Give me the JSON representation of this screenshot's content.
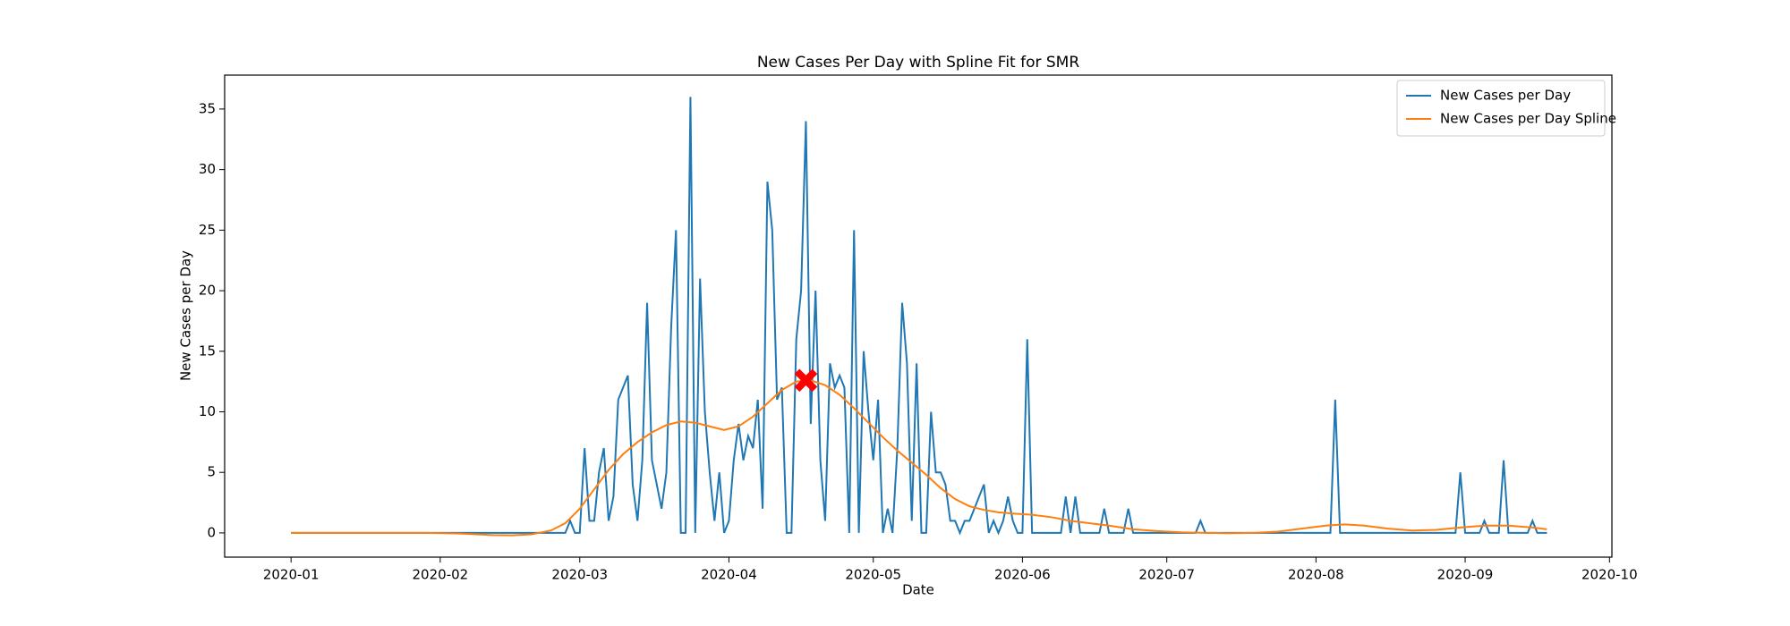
{
  "chart_data": {
    "type": "line",
    "title": "New Cases Per Day with Spline Fit for SMR",
    "x_label": "Date",
    "y_label": "New Cases per Day",
    "xlim": [
      -13.8,
      274.5
    ],
    "ylim": [
      -2,
      37.8
    ],
    "xticks": [
      {
        "value": 0,
        "label": "2020-01"
      },
      {
        "value": 31,
        "label": "2020-02"
      },
      {
        "value": 60,
        "label": "2020-03"
      },
      {
        "value": 91,
        "label": "2020-04"
      },
      {
        "value": 121,
        "label": "2020-05"
      },
      {
        "value": 152,
        "label": "2020-06"
      },
      {
        "value": 182,
        "label": "2020-07"
      },
      {
        "value": 213,
        "label": "2020-08"
      },
      {
        "value": 244,
        "label": "2020-09"
      },
      {
        "value": 274,
        "label": "2020-10"
      }
    ],
    "yticks": [
      0,
      5,
      10,
      15,
      20,
      25,
      30,
      35
    ],
    "legend": "upper right",
    "series": [
      {
        "name": "New Cases per Day",
        "color": "#1f77b4",
        "x": [
          0,
          1,
          2,
          3,
          4,
          5,
          6,
          7,
          8,
          9,
          10,
          11,
          12,
          13,
          14,
          15,
          16,
          17,
          18,
          19,
          20,
          21,
          22,
          23,
          24,
          25,
          26,
          27,
          28,
          29,
          30,
          31,
          32,
          33,
          34,
          35,
          36,
          37,
          38,
          39,
          40,
          41,
          42,
          43,
          44,
          45,
          46,
          47,
          48,
          49,
          50,
          51,
          52,
          53,
          54,
          55,
          56,
          57,
          58,
          59,
          60,
          61,
          62,
          63,
          64,
          65,
          66,
          67,
          68,
          69,
          70,
          71,
          72,
          73,
          74,
          75,
          76,
          77,
          78,
          79,
          80,
          81,
          82,
          83,
          84,
          85,
          86,
          87,
          88,
          89,
          90,
          91,
          92,
          93,
          94,
          95,
          96,
          97,
          98,
          99,
          100,
          101,
          102,
          103,
          104,
          105,
          106,
          107,
          108,
          109,
          110,
          111,
          112,
          113,
          114,
          115,
          116,
          117,
          118,
          119,
          120,
          121,
          122,
          123,
          124,
          125,
          126,
          127,
          128,
          129,
          130,
          131,
          132,
          133,
          134,
          135,
          136,
          137,
          138,
          139,
          140,
          141,
          142,
          143,
          144,
          145,
          146,
          147,
          148,
          149,
          150,
          151,
          152,
          153,
          154,
          155,
          156,
          157,
          158,
          159,
          160,
          161,
          162,
          163,
          164,
          165,
          166,
          167,
          168,
          169,
          170,
          171,
          172,
          173,
          174,
          175,
          176,
          177,
          178,
          179,
          180,
          181,
          182,
          183,
          184,
          185,
          186,
          187,
          188,
          189,
          190,
          191,
          192,
          193,
          194,
          195,
          196,
          197,
          198,
          199,
          200,
          201,
          202,
          203,
          204,
          205,
          206,
          207,
          208,
          209,
          210,
          211,
          212,
          213,
          214,
          215,
          216,
          217,
          218,
          219,
          220,
          221,
          222,
          223,
          224,
          225,
          226,
          227,
          228,
          229,
          230,
          231,
          232,
          233,
          234,
          235,
          236,
          237,
          238,
          239,
          240,
          241,
          242,
          243,
          244,
          245,
          246,
          247,
          248,
          249,
          250,
          251,
          252,
          253,
          254,
          255,
          256,
          257,
          258,
          259,
          260,
          261
        ],
        "values": [
          0,
          0,
          0,
          0,
          0,
          0,
          0,
          0,
          0,
          0,
          0,
          0,
          0,
          0,
          0,
          0,
          0,
          0,
          0,
          0,
          0,
          0,
          0,
          0,
          0,
          0,
          0,
          0,
          0,
          0,
          0,
          0,
          0,
          0,
          0,
          0,
          0,
          0,
          0,
          0,
          0,
          0,
          0,
          0,
          0,
          0,
          0,
          0,
          0,
          0,
          0,
          0,
          0,
          0,
          0,
          0,
          0,
          0,
          1,
          0,
          0,
          7,
          1,
          1,
          5,
          7,
          1,
          3,
          11,
          12,
          13,
          4,
          1,
          6,
          19,
          6,
          4,
          2,
          5,
          17,
          25,
          0,
          0,
          36,
          0,
          21,
          10,
          5,
          1,
          5,
          0,
          1,
          6,
          9,
          6,
          8,
          7,
          11,
          2,
          29,
          25,
          11,
          12,
          0,
          0,
          16,
          20,
          34,
          9,
          20,
          6,
          1,
          14,
          12,
          13,
          12,
          0,
          25,
          0,
          15,
          10,
          6,
          11,
          0,
          2,
          0,
          7,
          19,
          14,
          1,
          14,
          0,
          0,
          10,
          5,
          5,
          4,
          1,
          1,
          0,
          1,
          1,
          2,
          3,
          4,
          0,
          1,
          0,
          1,
          3,
          1,
          0,
          0,
          16,
          0,
          0,
          0,
          0,
          0,
          0,
          0,
          3,
          0,
          3,
          0,
          0,
          0,
          0,
          0,
          2,
          0,
          0,
          0,
          0,
          2,
          0,
          0,
          0,
          0,
          0,
          0,
          0,
          0,
          0,
          0,
          0,
          0,
          0,
          0,
          1,
          0,
          0,
          0,
          0,
          0,
          0,
          0,
          0,
          0,
          0,
          0,
          0,
          0,
          0,
          0,
          0,
          0,
          0,
          0,
          0,
          0,
          0,
          0,
          0,
          0,
          0,
          0,
          11,
          0,
          0,
          0,
          0,
          0,
          0,
          0,
          0,
          0,
          0,
          0,
          0,
          0,
          0,
          0,
          0,
          0,
          0,
          0,
          0,
          0,
          0,
          0,
          0,
          0,
          5,
          0,
          0,
          0,
          0,
          1,
          0,
          0,
          0,
          6,
          0,
          0,
          0,
          0,
          0,
          1,
          0,
          0,
          0
        ]
      },
      {
        "name": "New Cases per Day Spline",
        "color": "#ff7f0e",
        "x": [
          0,
          14,
          28,
          35,
          42,
          46,
          50,
          54,
          57,
          60,
          63,
          66,
          69,
          72,
          75,
          78,
          81,
          84,
          87,
          90,
          93,
          96,
          99,
          102,
          105,
          108,
          111,
          114,
          117,
          120,
          123,
          126,
          129,
          132,
          135,
          138,
          141,
          144,
          147,
          150,
          154,
          158,
          162,
          166,
          170,
          175,
          180,
          185,
          190,
          195,
          200,
          205,
          210,
          215,
          219,
          223,
          228,
          233,
          238,
          243,
          248,
          253,
          258,
          261
        ],
        "values": [
          0,
          0,
          0,
          -0.05,
          -0.18,
          -0.2,
          -0.12,
          0.2,
          0.8,
          2.0,
          3.6,
          5.2,
          6.5,
          7.5,
          8.3,
          8.9,
          9.2,
          9.1,
          8.8,
          8.5,
          8.8,
          9.6,
          10.7,
          11.8,
          12.5,
          12.6,
          12.2,
          11.4,
          10.3,
          9.1,
          7.9,
          6.8,
          5.8,
          4.8,
          3.7,
          2.8,
          2.2,
          1.9,
          1.7,
          1.6,
          1.5,
          1.3,
          1.0,
          0.8,
          0.6,
          0.3,
          0.15,
          0.05,
          0,
          -0.02,
          0,
          0.1,
          0.35,
          0.6,
          0.7,
          0.6,
          0.35,
          0.2,
          0.25,
          0.45,
          0.6,
          0.6,
          0.45,
          0.3
        ]
      }
    ],
    "marker": {
      "x": 107,
      "y": 12.6,
      "color": "#ff0000"
    }
  }
}
